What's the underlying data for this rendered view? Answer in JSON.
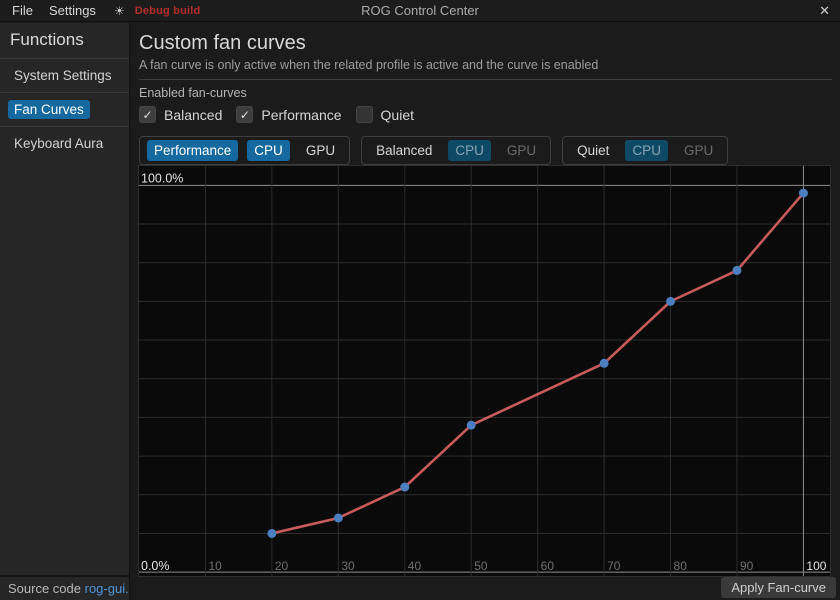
{
  "titlebar": {
    "menu_file": "File",
    "menu_settings": "Settings",
    "theme_icon_glyph": "☀",
    "debug_label": "Debug build",
    "title": "ROG Control Center",
    "close_glyph": "✕"
  },
  "sidebar": {
    "header": "Functions",
    "items": [
      {
        "label": "System Settings",
        "active": false
      },
      {
        "label": "Fan Curves",
        "active": true
      },
      {
        "label": "Keyboard Aura",
        "active": false
      }
    ],
    "footer_text": "Source code ",
    "footer_link": "rog-gui."
  },
  "main": {
    "title": "Custom fan curves",
    "subtitle": "A fan curve is only active when the related profile is active and the curve is enabled",
    "enabled_heading": "Enabled fan-curves",
    "check_glyph": "✓",
    "checkboxes": [
      {
        "label": "Balanced",
        "checked": true
      },
      {
        "label": "Performance",
        "checked": true
      },
      {
        "label": "Quiet",
        "checked": false
      }
    ],
    "profile_groups": [
      {
        "profile": "Performance",
        "profile_state": "active",
        "cpu_label": "CPU",
        "cpu_state": "active",
        "gpu_label": "GPU",
        "gpu_state": "normal"
      },
      {
        "profile": "Balanced",
        "profile_state": "normal",
        "cpu_label": "CPU",
        "cpu_state": "active-dim",
        "gpu_label": "GPU",
        "gpu_state": "dim"
      },
      {
        "profile": "Quiet",
        "profile_state": "normal",
        "cpu_label": "CPU",
        "cpu_state": "active-dim",
        "gpu_label": "GPU",
        "gpu_state": "dim"
      }
    ],
    "apply_button": "Apply Fan-curve"
  },
  "colors": {
    "accent": "#15699e",
    "accent_dim": "#0e4a66",
    "link": "#4f96d8",
    "debug_red": "#b32e2e"
  },
  "chart_data": {
    "type": "line",
    "title": "",
    "xlabel": "",
    "ylabel": "",
    "series": [
      {
        "name": "Performance CPU fan curve",
        "x": [
          20,
          30,
          40,
          50,
          70,
          80,
          90,
          100
        ],
        "y": [
          10,
          14,
          22,
          38,
          54,
          70,
          78,
          98
        ]
      }
    ],
    "x_ticks": [
      10,
      20,
      30,
      40,
      50,
      60,
      70,
      80,
      90,
      100
    ],
    "y_top_label": "100.0%",
    "y_bottom_label": "0.0%",
    "xlim": [
      0,
      104
    ],
    "ylim": [
      -1,
      105
    ],
    "grid": true,
    "legend": "none",
    "line_color": "#c75b5b",
    "point_color": "#4d7ec0",
    "grid_color": "#2c2c2c",
    "grid_emph_color": "#8f8f8f",
    "tick_color": "#6f6f6f",
    "tick_emph_color": "#e2e2e2",
    "emphasized_x": [
      100
    ],
    "emphasized_y": [
      0,
      100
    ]
  }
}
